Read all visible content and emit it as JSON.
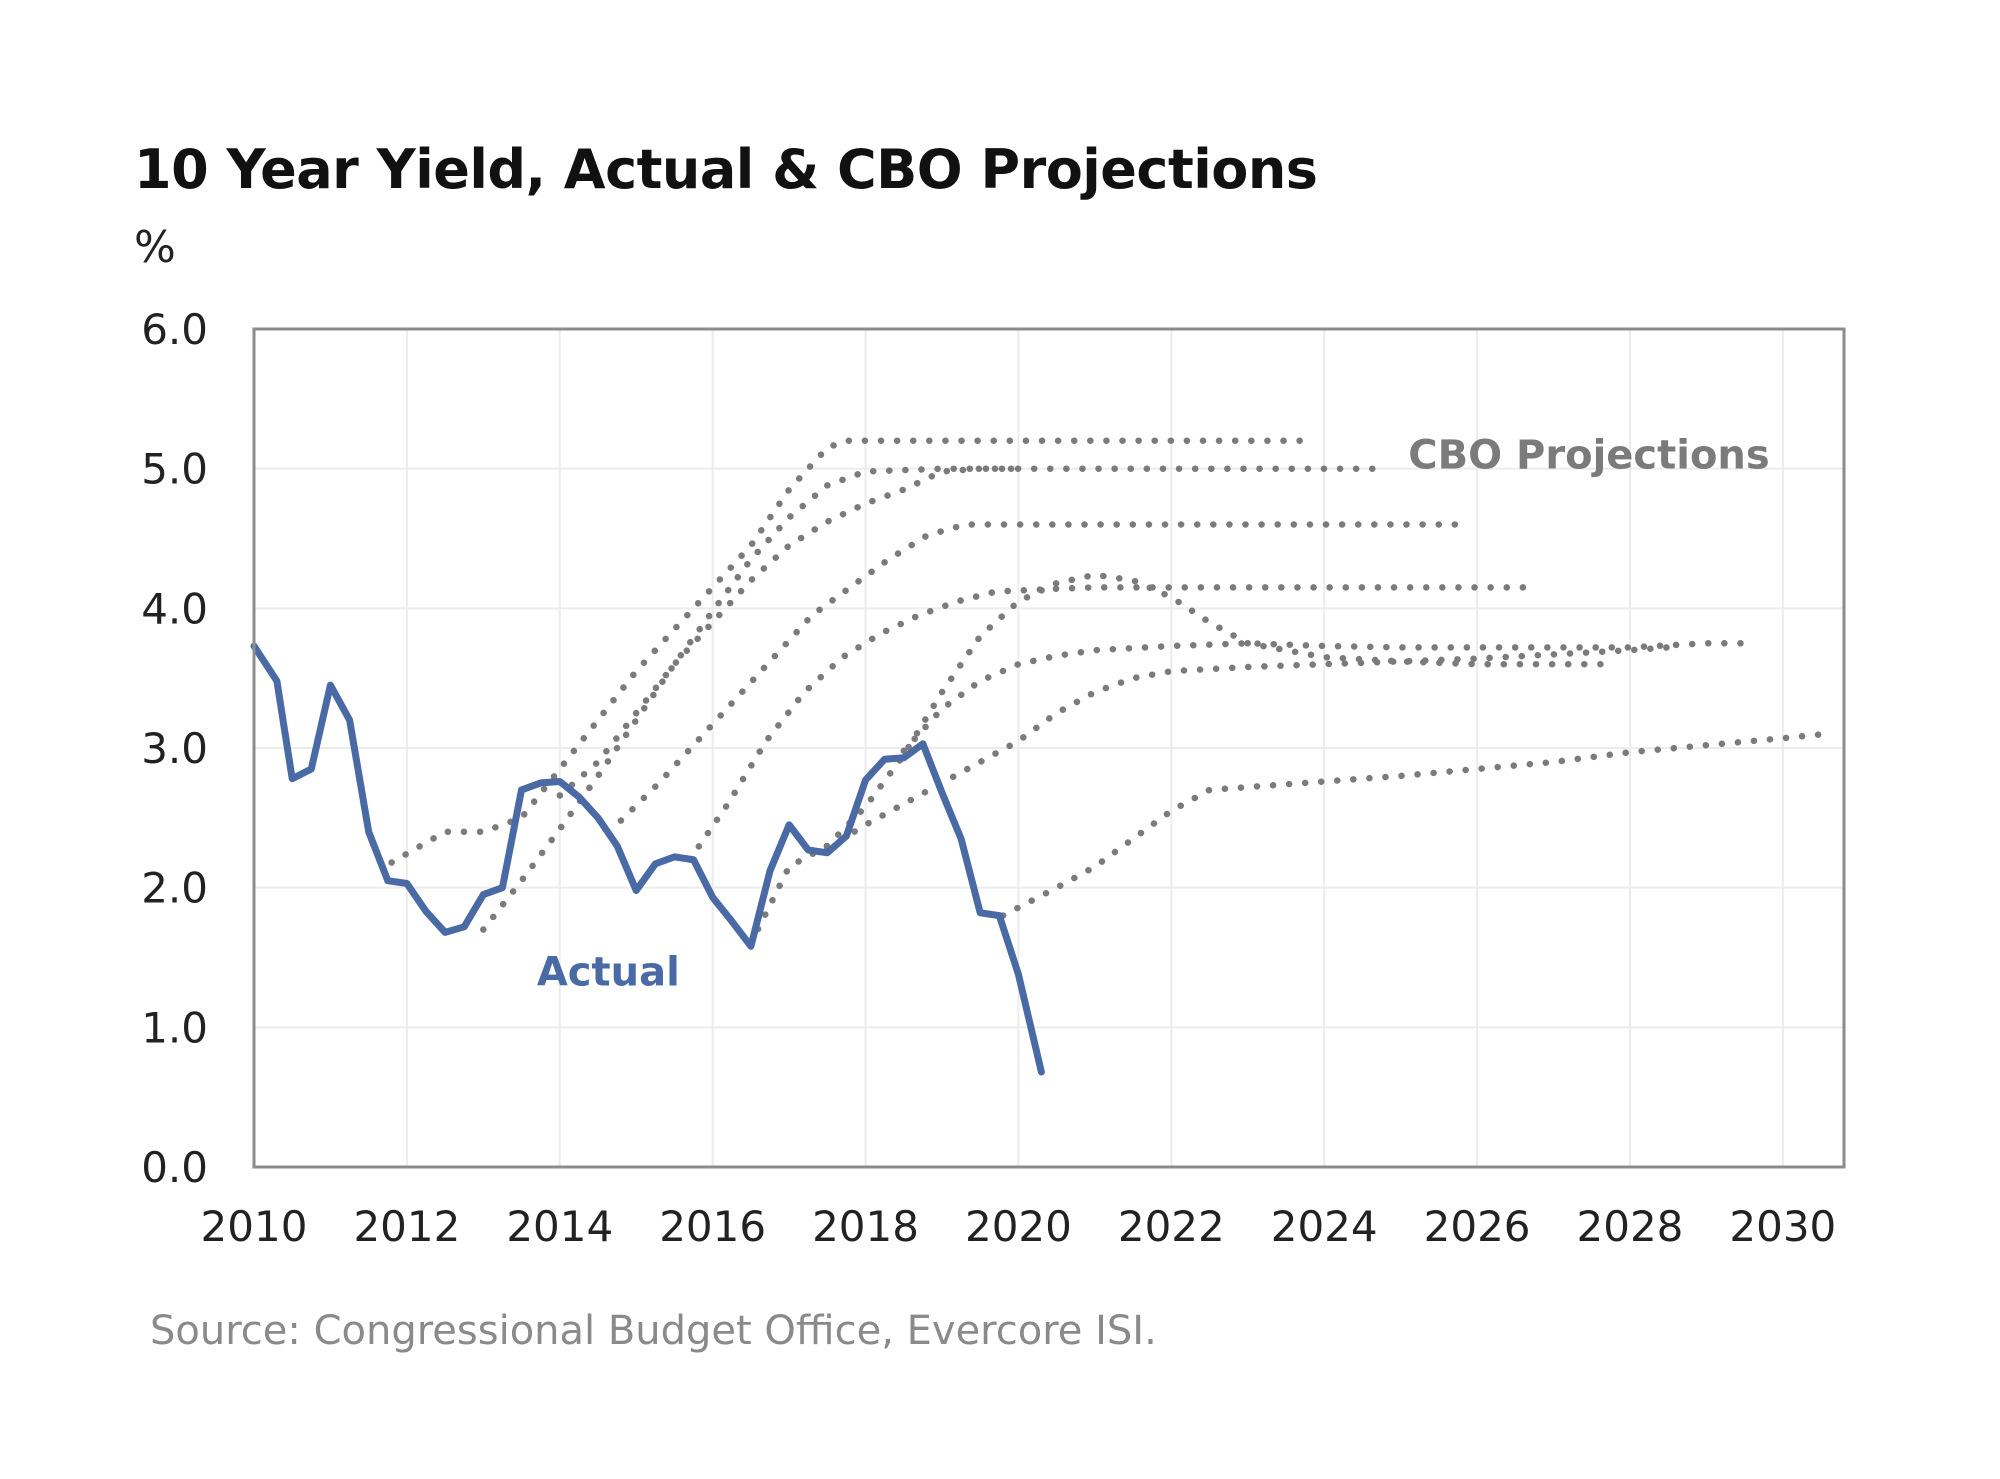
{
  "title": "10 Year Yield, Actual & CBO Projections",
  "y_unit": "%",
  "source": "Source: Congressional Budget Office, Evercore ISI.",
  "colors": {
    "actual": "#4a6aa5",
    "projection": "#7b7b7b",
    "grid": "#ececec",
    "frame": "#8c8c8c"
  },
  "chart_data": {
    "type": "line",
    "xlim": [
      2010,
      2030.8
    ],
    "ylim": [
      0,
      6
    ],
    "x_ticks": [
      "2010",
      "2012",
      "2014",
      "2016",
      "2018",
      "2020",
      "2022",
      "2024",
      "2026",
      "2028",
      "2030"
    ],
    "y_ticks": [
      "0.0",
      "1.0",
      "2.0",
      "3.0",
      "4.0",
      "5.0",
      "6.0"
    ],
    "grid": true,
    "annotations": [
      {
        "text": "Actual",
        "x": 2013.7,
        "y": 1.3,
        "series": "actual"
      },
      {
        "text": "CBO Projections",
        "x": 2025.1,
        "y": 5.0,
        "series": "projection"
      }
    ],
    "series": [
      {
        "name": "Actual",
        "style": "solid",
        "points": [
          [
            2010.0,
            3.73
          ],
          [
            2010.3,
            3.48
          ],
          [
            2010.5,
            2.78
          ],
          [
            2010.75,
            2.85
          ],
          [
            2011.0,
            3.45
          ],
          [
            2011.25,
            3.2
          ],
          [
            2011.5,
            2.4
          ],
          [
            2011.75,
            2.05
          ],
          [
            2012.0,
            2.03
          ],
          [
            2012.25,
            1.83
          ],
          [
            2012.5,
            1.68
          ],
          [
            2012.75,
            1.72
          ],
          [
            2013.0,
            1.95
          ],
          [
            2013.25,
            2.0
          ],
          [
            2013.5,
            2.7
          ],
          [
            2013.75,
            2.75
          ],
          [
            2014.0,
            2.76
          ],
          [
            2014.25,
            2.65
          ],
          [
            2014.5,
            2.5
          ],
          [
            2014.75,
            2.3
          ],
          [
            2015.0,
            1.98
          ],
          [
            2015.25,
            2.17
          ],
          [
            2015.5,
            2.22
          ],
          [
            2015.75,
            2.2
          ],
          [
            2016.0,
            1.93
          ],
          [
            2016.25,
            1.76
          ],
          [
            2016.5,
            1.58
          ],
          [
            2016.75,
            2.12
          ],
          [
            2017.0,
            2.45
          ],
          [
            2017.25,
            2.27
          ],
          [
            2017.5,
            2.25
          ],
          [
            2017.75,
            2.37
          ],
          [
            2018.0,
            2.77
          ],
          [
            2018.25,
            2.92
          ],
          [
            2018.5,
            2.93
          ],
          [
            2018.75,
            3.03
          ],
          [
            2019.0,
            2.68
          ],
          [
            2019.25,
            2.35
          ],
          [
            2019.5,
            1.82
          ],
          [
            2019.75,
            1.8
          ],
          [
            2020.0,
            1.38
          ],
          [
            2020.3,
            0.68
          ]
        ]
      },
      {
        "name": "",
        "style": "dotted",
        "points": [
          [
            2011.8,
            2.18
          ],
          [
            2012.5,
            2.4
          ],
          [
            2013.0,
            2.4
          ],
          [
            2013.5,
            2.5
          ],
          [
            2014.0,
            2.85
          ],
          [
            2014.5,
            3.2
          ],
          [
            2015.0,
            3.55
          ],
          [
            2015.5,
            3.85
          ],
          [
            2016.0,
            4.15
          ],
          [
            2016.5,
            4.45
          ],
          [
            2017.0,
            4.85
          ],
          [
            2017.5,
            5.15
          ],
          [
            2017.75,
            5.2
          ],
          [
            2019.0,
            5.2
          ],
          [
            2020.0,
            5.2
          ],
          [
            2021.0,
            5.2
          ],
          [
            2022.0,
            5.2
          ],
          [
            2023.0,
            5.2
          ],
          [
            2023.75,
            5.2
          ]
        ]
      },
      {
        "name": "",
        "style": "dotted",
        "points": [
          [
            2013.0,
            1.7
          ],
          [
            2013.5,
            2.05
          ],
          [
            2014.0,
            2.42
          ],
          [
            2014.5,
            2.8
          ],
          [
            2015.0,
            3.2
          ],
          [
            2015.5,
            3.6
          ],
          [
            2016.0,
            3.98
          ],
          [
            2016.5,
            4.35
          ],
          [
            2017.0,
            4.65
          ],
          [
            2017.5,
            4.88
          ],
          [
            2018.0,
            4.98
          ],
          [
            2019.0,
            5.0
          ],
          [
            2020.0,
            5.0
          ],
          [
            2021.0,
            5.0
          ],
          [
            2022.0,
            5.0
          ],
          [
            2023.0,
            5.0
          ],
          [
            2024.0,
            5.0
          ],
          [
            2024.75,
            5.0
          ]
        ]
      },
      {
        "name": "",
        "style": "dotted",
        "points": [
          [
            2014.0,
            2.66
          ],
          [
            2014.5,
            2.9
          ],
          [
            2015.0,
            3.25
          ],
          [
            2015.5,
            3.6
          ],
          [
            2016.0,
            3.9
          ],
          [
            2016.5,
            4.2
          ],
          [
            2017.0,
            4.45
          ],
          [
            2017.5,
            4.62
          ],
          [
            2018.0,
            4.75
          ],
          [
            2018.5,
            4.85
          ],
          [
            2019.0,
            4.98
          ],
          [
            2019.5,
            5.0
          ],
          [
            2020.0,
            5.0
          ]
        ]
      },
      {
        "name": "",
        "style": "dotted",
        "points": [
          [
            2014.8,
            2.48
          ],
          [
            2015.3,
            2.75
          ],
          [
            2015.8,
            3.05
          ],
          [
            2016.3,
            3.35
          ],
          [
            2016.8,
            3.65
          ],
          [
            2017.3,
            3.95
          ],
          [
            2017.8,
            4.15
          ],
          [
            2018.3,
            4.35
          ],
          [
            2018.8,
            4.52
          ],
          [
            2019.3,
            4.6
          ],
          [
            2020.0,
            4.6
          ],
          [
            2021.0,
            4.6
          ],
          [
            2022.0,
            4.6
          ],
          [
            2023.0,
            4.6
          ],
          [
            2024.0,
            4.6
          ],
          [
            2025.0,
            4.6
          ],
          [
            2025.8,
            4.6
          ]
        ]
      },
      {
        "name": "",
        "style": "dotted",
        "points": [
          [
            2015.7,
            2.2
          ],
          [
            2016.2,
            2.6
          ],
          [
            2016.7,
            3.05
          ],
          [
            2017.2,
            3.4
          ],
          [
            2017.7,
            3.65
          ],
          [
            2018.2,
            3.82
          ],
          [
            2018.7,
            3.95
          ],
          [
            2019.2,
            4.05
          ],
          [
            2019.7,
            4.12
          ],
          [
            2020.5,
            4.14
          ],
          [
            2021.0,
            4.15
          ],
          [
            2022.0,
            4.15
          ],
          [
            2023.0,
            4.15
          ],
          [
            2024.0,
            4.15
          ],
          [
            2025.0,
            4.15
          ],
          [
            2026.0,
            4.15
          ],
          [
            2026.75,
            4.15
          ]
        ]
      },
      {
        "name": "",
        "style": "dotted",
        "points": [
          [
            2016.5,
            1.6
          ],
          [
            2017.0,
            2.15
          ],
          [
            2017.5,
            2.3
          ],
          [
            2018.0,
            2.58
          ],
          [
            2018.5,
            2.95
          ],
          [
            2019.0,
            3.4
          ],
          [
            2019.5,
            3.8
          ],
          [
            2020.0,
            4.05
          ],
          [
            2020.5,
            4.18
          ],
          [
            2021.0,
            4.24
          ],
          [
            2021.5,
            4.2
          ],
          [
            2022.0,
            4.08
          ],
          [
            2022.5,
            3.9
          ],
          [
            2023.0,
            3.75
          ],
          [
            2023.5,
            3.7
          ],
          [
            2024.0,
            3.65
          ],
          [
            2025.0,
            3.62
          ],
          [
            2026.0,
            3.6
          ],
          [
            2027.0,
            3.6
          ],
          [
            2027.75,
            3.6
          ]
        ]
      },
      {
        "name": "",
        "style": "dotted",
        "points": [
          [
            2018.5,
            2.98
          ],
          [
            2019.0,
            3.28
          ],
          [
            2019.5,
            3.48
          ],
          [
            2020.0,
            3.6
          ],
          [
            2020.5,
            3.66
          ],
          [
            2021.0,
            3.7
          ],
          [
            2022.0,
            3.73
          ],
          [
            2023.0,
            3.75
          ],
          [
            2024.0,
            3.73
          ],
          [
            2025.0,
            3.72
          ],
          [
            2026.0,
            3.72
          ],
          [
            2027.0,
            3.72
          ],
          [
            2028.0,
            3.72
          ],
          [
            2029.0,
            3.75
          ],
          [
            2029.5,
            3.75
          ]
        ]
      },
      {
        "name": "",
        "style": "dotted",
        "points": [
          [
            2017.5,
            2.28
          ],
          [
            2018.0,
            2.45
          ],
          [
            2018.5,
            2.6
          ],
          [
            2019.0,
            2.75
          ],
          [
            2019.5,
            2.9
          ],
          [
            2020.0,
            3.05
          ],
          [
            2020.5,
            3.25
          ],
          [
            2021.0,
            3.4
          ],
          [
            2021.5,
            3.5
          ],
          [
            2022.0,
            3.55
          ],
          [
            2023.0,
            3.58
          ],
          [
            2024.0,
            3.6
          ],
          [
            2025.0,
            3.62
          ],
          [
            2026.0,
            3.64
          ],
          [
            2027.0,
            3.67
          ],
          [
            2028.0,
            3.7
          ],
          [
            2028.5,
            3.72
          ]
        ]
      },
      {
        "name": "",
        "style": "dotted",
        "points": [
          [
            2019.8,
            1.8
          ],
          [
            2020.5,
            2.0
          ],
          [
            2021.0,
            2.15
          ],
          [
            2021.5,
            2.35
          ],
          [
            2022.0,
            2.55
          ],
          [
            2022.5,
            2.7
          ],
          [
            2023.0,
            2.72
          ],
          [
            2024.0,
            2.76
          ],
          [
            2025.0,
            2.8
          ],
          [
            2026.0,
            2.85
          ],
          [
            2027.0,
            2.9
          ],
          [
            2028.0,
            2.97
          ],
          [
            2029.0,
            3.02
          ],
          [
            2030.0,
            3.07
          ],
          [
            2030.55,
            3.1
          ]
        ]
      }
    ]
  }
}
